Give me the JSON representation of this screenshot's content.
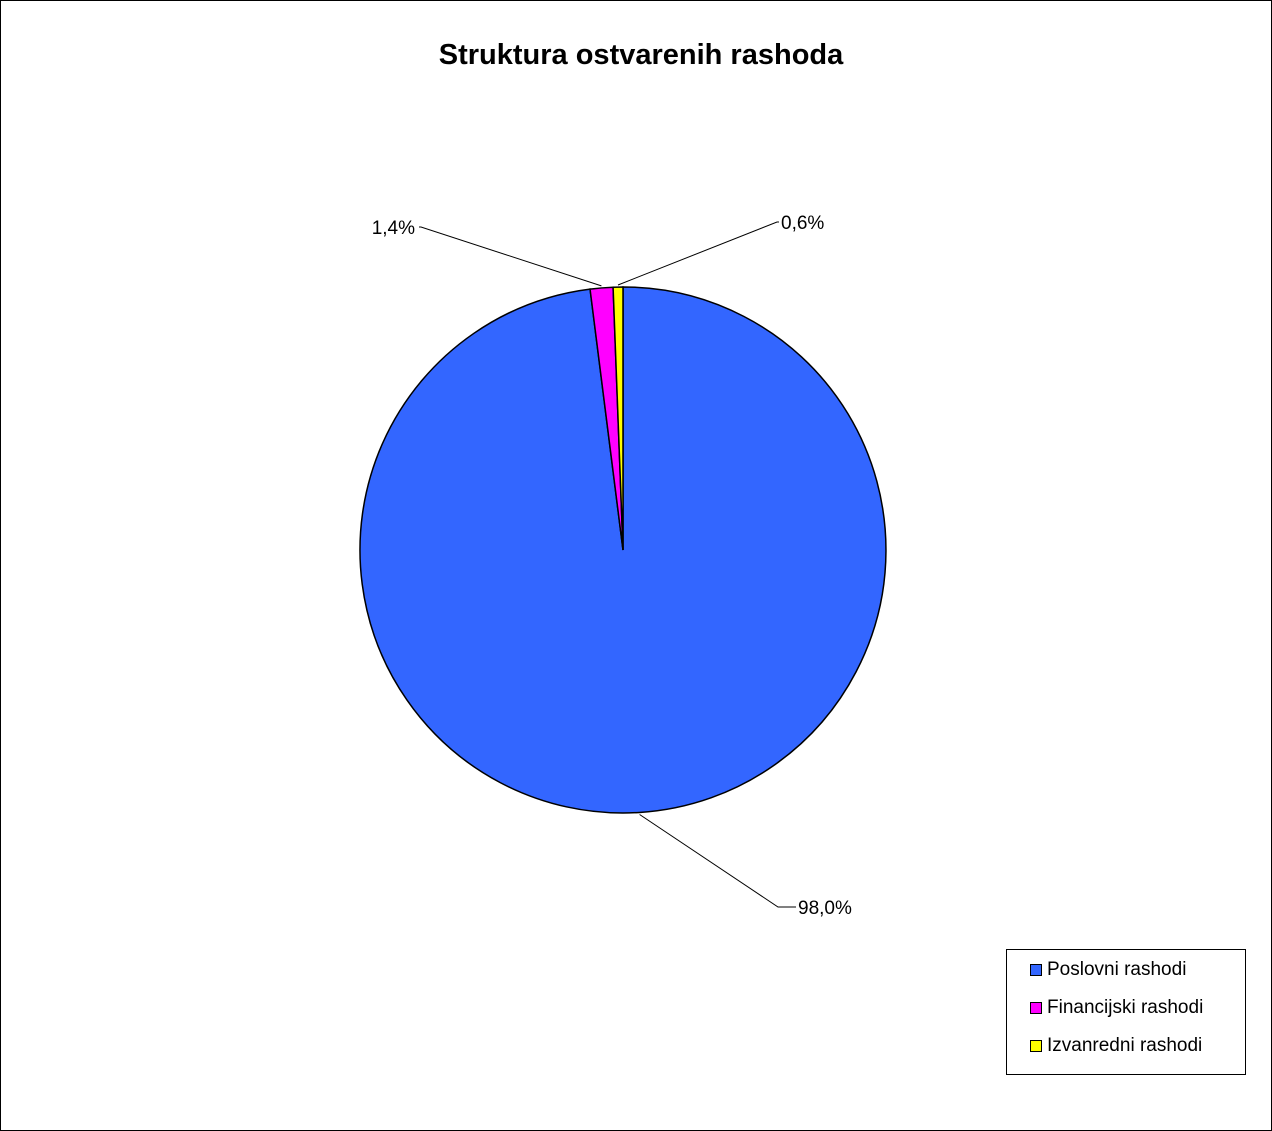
{
  "chart_data": {
    "type": "pie",
    "title": "Struktura ostvarenih rashoda",
    "categories": [
      "Poslovni rashodi",
      "Financijski rashodi",
      "Izvanredni rashodi"
    ],
    "values": [
      98.0,
      1.4,
      0.6
    ],
    "value_labels": [
      "98,0%",
      "1,4%",
      "0,6%"
    ],
    "colors": [
      "#3366FF",
      "#FF00FF",
      "#FFFF00"
    ],
    "legend_position": "bottom-right"
  }
}
